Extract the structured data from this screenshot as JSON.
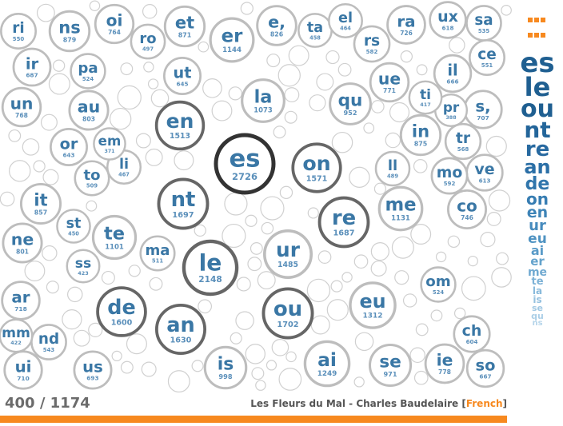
{
  "chart_data": {
    "type": "bubble",
    "title": "",
    "bubbles": [
      {
        "label": "es",
        "count": "2726"
      },
      {
        "label": "le",
        "count": "2148"
      },
      {
        "label": "ou",
        "count": "1702"
      },
      {
        "label": "nt",
        "count": "1697"
      },
      {
        "label": "re",
        "count": "1687"
      },
      {
        "label": "an",
        "count": "1630"
      },
      {
        "label": "de",
        "count": "1600"
      },
      {
        "label": "on",
        "count": "1571"
      },
      {
        "label": "en",
        "count": "1513"
      },
      {
        "label": "ur",
        "count": "1485"
      },
      {
        "label": "eu",
        "count": "1312"
      },
      {
        "label": "ai",
        "count": "1249"
      },
      {
        "label": "er",
        "count": "1144"
      },
      {
        "label": "me",
        "count": "1131"
      },
      {
        "label": "te",
        "count": "1101"
      },
      {
        "label": "la",
        "count": "1073"
      },
      {
        "label": "is",
        "count": "998"
      },
      {
        "label": "se",
        "count": "971"
      },
      {
        "label": "qu",
        "count": "952"
      },
      {
        "label": "ns",
        "count": "879"
      },
      {
        "label": "in",
        "count": "875"
      },
      {
        "label": "et",
        "count": "871"
      },
      {
        "label": "it",
        "count": "857"
      },
      {
        "label": "e,",
        "count": "826"
      },
      {
        "label": "au",
        "count": "803"
      },
      {
        "label": "ne",
        "count": "801"
      },
      {
        "label": "ie",
        "count": "778"
      },
      {
        "label": "ue",
        "count": "771"
      },
      {
        "label": "un",
        "count": "768"
      },
      {
        "label": "oi",
        "count": "764"
      },
      {
        "label": "co",
        "count": "746"
      },
      {
        "label": "ar",
        "count": "718"
      },
      {
        "label": "ra",
        "count": "726"
      },
      {
        "label": "s,",
        "count": "707"
      },
      {
        "label": "ui",
        "count": "710"
      },
      {
        "label": "us",
        "count": "693"
      },
      {
        "label": "ir",
        "count": "687"
      },
      {
        "label": "il",
        "count": "666"
      },
      {
        "label": "so",
        "count": "667"
      },
      {
        "label": "or",
        "count": "643"
      },
      {
        "label": "ut",
        "count": "645"
      },
      {
        "label": "ve",
        "count": "613"
      },
      {
        "label": "ch",
        "count": "604"
      },
      {
        "label": "mo",
        "count": "592"
      },
      {
        "label": "rs",
        "count": "582"
      },
      {
        "label": "nd",
        "count": "543"
      },
      {
        "label": "ma",
        "count": "511"
      },
      {
        "label": "to",
        "count": "509"
      },
      {
        "label": "pa",
        "count": "524"
      },
      {
        "label": "om",
        "count": "524"
      },
      {
        "label": "ro",
        "count": "497"
      },
      {
        "label": "ll",
        "count": "489"
      },
      {
        "label": "ux",
        "count": "618"
      },
      {
        "label": "sa",
        "count": "535"
      },
      {
        "label": "ta",
        "count": "458"
      },
      {
        "label": "el",
        "count": "464"
      },
      {
        "label": "ce",
        "count": "551"
      },
      {
        "label": "ss",
        "count": "423"
      },
      {
        "label": "mm",
        "count": "422"
      },
      {
        "label": "ri",
        "count": "550"
      },
      {
        "label": "st",
        "count": "450"
      },
      {
        "label": "li",
        "count": "467"
      },
      {
        "label": "em",
        "count": "371"
      },
      {
        "label": "pr",
        "count": "388"
      },
      {
        "label": "tr",
        "count": "568"
      },
      {
        "label": "ti",
        "count": "417"
      }
    ],
    "side_ranking": [
      "es",
      "le",
      "ou",
      "nt",
      "re",
      "an",
      "de",
      "on",
      "en",
      "ur",
      "eu",
      "ai",
      "er",
      "me",
      "te",
      "la",
      "is",
      "se",
      "qu",
      "ns"
    ],
    "colors": {
      "bubble_text": "#3a77a5",
      "accent": "#f7891f",
      "ring": "#bdbdbd",
      "ring_dark": "#555555"
    }
  },
  "footer": {
    "progress": "400 / 1174",
    "credit_prefix": "Les Fleurs du Mal - Charles Baudelaire [",
    "credit_lang": "French",
    "credit_suffix": "]"
  }
}
